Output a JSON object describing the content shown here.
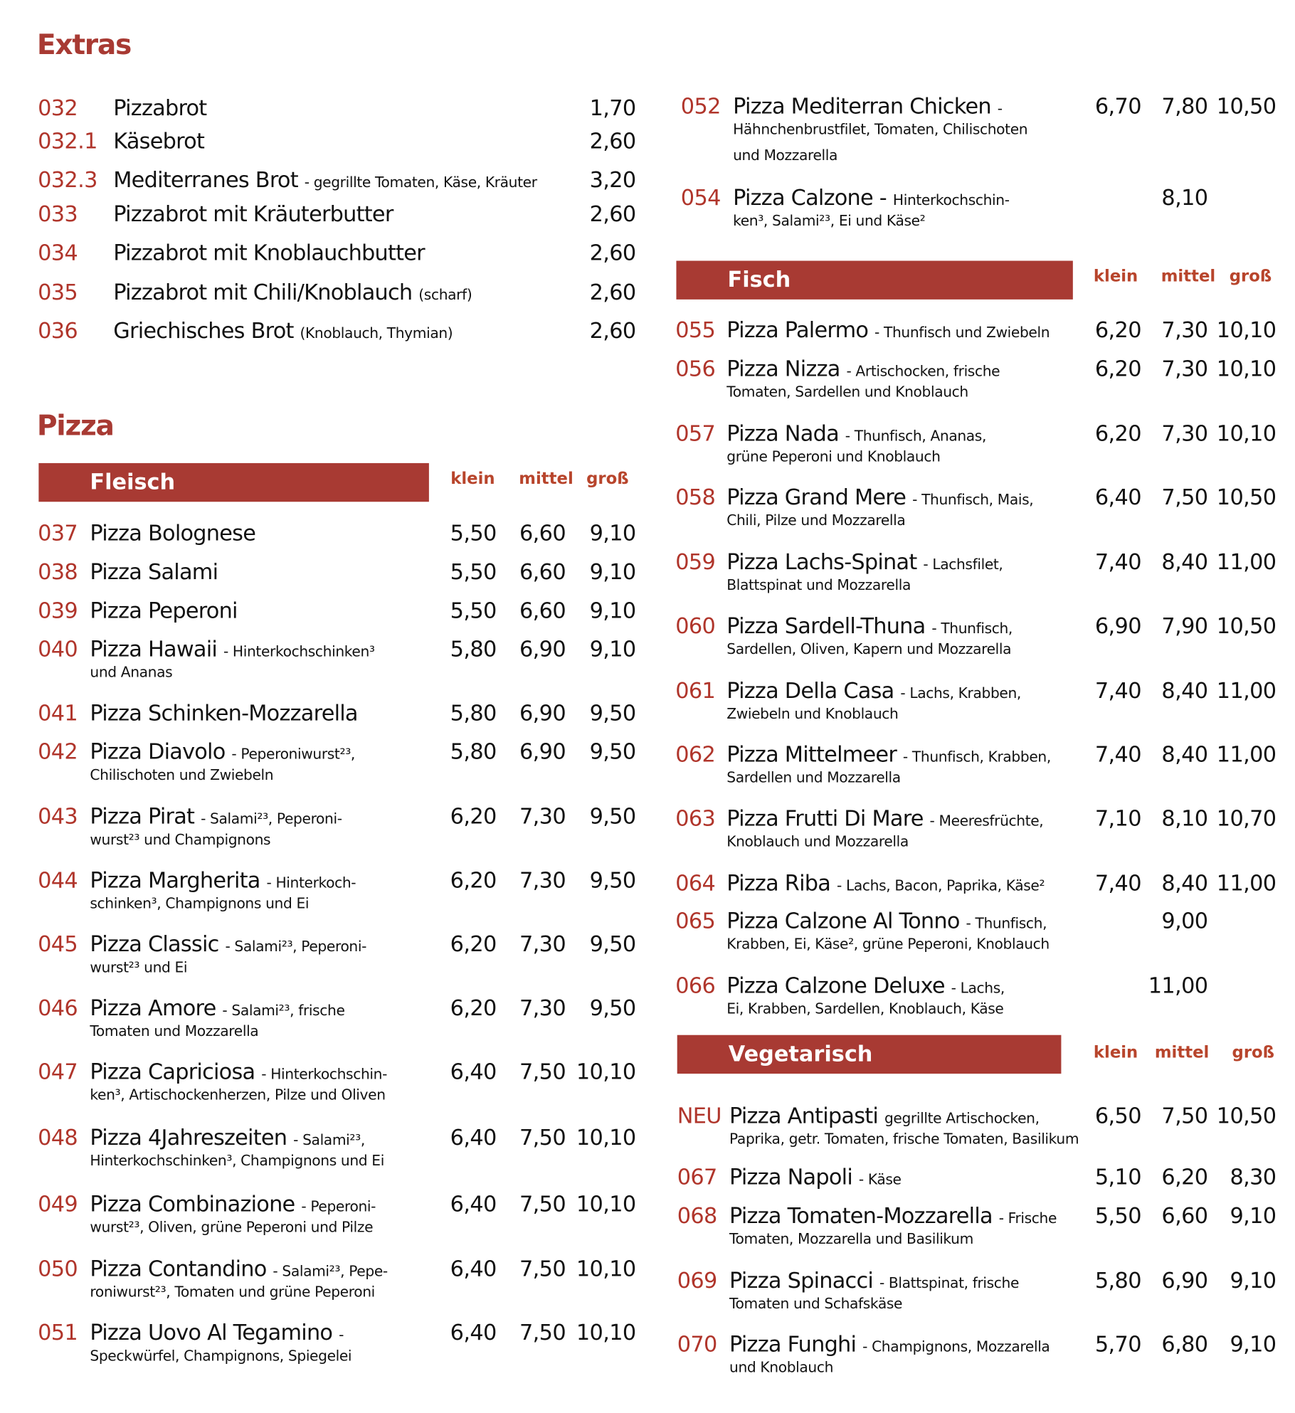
{
  "colors": {
    "accent": "#a83a33",
    "code": "#b0352b",
    "header": "#b8452c"
  },
  "extras": {
    "title": "Extras",
    "items": [
      {
        "code": "032",
        "name": "Pizzabrot",
        "desc": "",
        "price": "1,70"
      },
      {
        "code": "032.1",
        "name": "Käsebrot",
        "desc": "",
        "price": "2,60"
      },
      {
        "code": "032.3",
        "name": "Mediterranes  Brot",
        "desc": "- gegrillte Tomaten, Käse, Kräuter",
        "price": "3,20"
      },
      {
        "code": "033",
        "name": "Pizzabrot mit Kräuterbutter",
        "desc": "",
        "price": "2,60"
      },
      {
        "code": "034",
        "name": "Pizzabrot mit Knoblauchbutter",
        "desc": "",
        "price": "2,60"
      },
      {
        "code": "035",
        "name": "Pizzabrot mit Chili/Knoblauch",
        "desc": "(scharf)",
        "price": "2,60"
      },
      {
        "code": "036",
        "name": "Griechisches Brot",
        "desc": "(Knoblauch, Thymian)",
        "price": "2,60"
      }
    ]
  },
  "pizza": {
    "title": "Pizza",
    "columns": [
      "klein",
      "mittel",
      "groß"
    ],
    "fleisch": {
      "title": "Fleisch",
      "items": [
        {
          "code": "037",
          "name": "Pizza Bolognese",
          "desc": "",
          "desc2": "",
          "prices": [
            "5,50",
            "6,60",
            "9,10"
          ]
        },
        {
          "code": "038",
          "name": "Pizza Salami",
          "desc": "",
          "desc2": "",
          "prices": [
            "5,50",
            "6,60",
            "9,10"
          ]
        },
        {
          "code": "039",
          "name": "Pizza Peperoni",
          "desc": "",
          "desc2": "",
          "prices": [
            "5,50",
            "6,60",
            "9,10"
          ]
        },
        {
          "code": "040",
          "name": "Pizza Hawaii",
          "desc": "- Hinterkochschinken³",
          "desc2": "und Ananas",
          "prices": [
            "5,80",
            "6,90",
            "9,10"
          ]
        },
        {
          "code": "041",
          "name": "Pizza Schinken-Mozzarella",
          "desc": "",
          "desc2": "",
          "prices": [
            "5,80",
            "6,90",
            "9,50"
          ]
        },
        {
          "code": "042",
          "name": "Pizza Diavolo",
          "desc": "- Peperoniwurst²³,",
          "desc2": "Chilischoten und Zwiebeln",
          "prices": [
            "5,80",
            "6,90",
            "9,50"
          ]
        },
        {
          "code": "043",
          "name": "Pizza Pirat",
          "desc": "- Salami²³, Peperoni-",
          "desc2": "wurst²³ und Champignons",
          "prices": [
            "6,20",
            "7,30",
            "9,50"
          ]
        },
        {
          "code": "044",
          "name": "Pizza Margherita",
          "desc": "- Hinterkoch-",
          "desc2": "schinken³, Champignons und Ei",
          "prices": [
            "6,20",
            "7,30",
            "9,50"
          ]
        },
        {
          "code": "045",
          "name": "Pizza Classic",
          "desc": "- Salami²³, Peperoni-",
          "desc2": "wurst²³ und Ei",
          "prices": [
            "6,20",
            "7,30",
            "9,50"
          ]
        },
        {
          "code": "046",
          "name": "Pizza Amore",
          "desc": "- Salami²³, frische",
          "desc2": "Tomaten und Mozzarella",
          "prices": [
            "6,20",
            "7,30",
            "9,50"
          ]
        },
        {
          "code": "047",
          "name": "Pizza Capriciosa",
          "desc": "- Hinterkochschin-",
          "desc2": "ken³, Artischockenherzen, Pilze und Oliven",
          "prices": [
            "6,40",
            "7,50",
            "10,10"
          ]
        },
        {
          "code": "048",
          "name": "Pizza 4Jahreszeiten",
          "desc": "- Salami²³,",
          "desc2": "Hinterkochschinken³, Champignons und Ei",
          "prices": [
            "6,40",
            "7,50",
            "10,10"
          ]
        },
        {
          "code": "049",
          "name": "Pizza Combinazione",
          "desc": "- Peperoni-",
          "desc2": "wurst²³, Oliven, grüne Peperoni und Pilze",
          "prices": [
            "6,40",
            "7,50",
            "10,10"
          ]
        },
        {
          "code": "050",
          "name": "Pizza Contandino",
          "desc": "- Salami²³, Pepe-",
          "desc2": "roniwurst²³, Tomaten und grüne Peperoni",
          "prices": [
            "6,40",
            "7,50",
            "10,10"
          ]
        },
        {
          "code": "051",
          "name": "Pizza Uovo Al Tegamino",
          "desc": "-",
          "desc2": "Speckwürfel, Champignons, Spiegelei",
          "prices": [
            "6,40",
            "7,50",
            "10,10"
          ]
        }
      ]
    },
    "fleisch_cont": {
      "items": [
        {
          "code": "052",
          "name": "Pizza Mediterran Chicken",
          "desc": "-",
          "desc2": "Hähnchenbrustfilet, Tomaten, Chilischoten",
          "desc3": "und Mozzarella",
          "prices": [
            "6,70",
            "7,80",
            "10,50"
          ]
        },
        {
          "code": "054",
          "name": "Pizza Calzone -",
          "desc": "Hinterkochschin-",
          "desc2": "ken³, Salami²³, Ei und Käse²",
          "desc3": "",
          "prices": [
            "",
            "8,10",
            ""
          ]
        }
      ]
    },
    "fisch": {
      "title": "Fisch",
      "items": [
        {
          "code": "055",
          "name": "Pizza Palermo",
          "desc": "- Thunfisch und Zwiebeln",
          "desc2": "",
          "prices": [
            "6,20",
            "7,30",
            "10,10"
          ]
        },
        {
          "code": "056",
          "name": "Pizza Nizza",
          "desc": "- Artischocken, frische",
          "desc2": "Tomaten, Sardellen und Knoblauch",
          "prices": [
            "6,20",
            "7,30",
            "10,10"
          ]
        },
        {
          "code": "057",
          "name": "Pizza Nada",
          "desc": "- Thunfisch, Ananas,",
          "desc2": "grüne Peperoni und Knoblauch",
          "prices": [
            "6,20",
            "7,30",
            "10,10"
          ]
        },
        {
          "code": "058",
          "name": "Pizza Grand Mere",
          "desc": "- Thunfisch, Mais,",
          "desc2": "Chili, Pilze und Mozzarella",
          "prices": [
            "6,40",
            "7,50",
            "10,50"
          ]
        },
        {
          "code": "059",
          "name": "Pizza Lachs-Spinat",
          "desc": "- Lachsfilet,",
          "desc2": "Blattspinat und Mozzarella",
          "prices": [
            "7,40",
            "8,40",
            "11,00"
          ]
        },
        {
          "code": "060",
          "name": "Pizza Sardell-Thuna",
          "desc": "- Thunfisch,",
          "desc2": "Sardellen, Oliven, Kapern und Mozzarella",
          "prices": [
            "6,90",
            "7,90",
            "10,50"
          ]
        },
        {
          "code": "061",
          "name": "Pizza Della Casa",
          "desc": "- Lachs, Krabben,",
          "desc2": "Zwiebeln und Knoblauch",
          "prices": [
            "7,40",
            "8,40",
            "11,00"
          ]
        },
        {
          "code": "062",
          "name": "Pizza Mittelmeer",
          "desc": "- Thunfisch, Krabben,",
          "desc2": "Sardellen und Mozzarella",
          "prices": [
            "7,40",
            "8,40",
            "11,00"
          ]
        },
        {
          "code": "063",
          "name": "Pizza Frutti Di Mare",
          "desc": "- Meeresfrüchte,",
          "desc2": "Knoblauch und Mozzarella",
          "prices": [
            "7,10",
            "8,10",
            "10,70"
          ]
        },
        {
          "code": "064",
          "name": "Pizza Riba",
          "desc": "- Lachs, Bacon, Paprika, Käse²",
          "desc2": "",
          "prices": [
            "7,40",
            "8,40",
            "11,00"
          ]
        },
        {
          "code": "065",
          "name": "Pizza Calzone Al Tonno",
          "desc": "- Thunfisch,",
          "desc2": "Krabben, Ei, Käse², grüne Peperoni, Knoblauch",
          "prices": [
            "",
            "9,00",
            ""
          ]
        },
        {
          "code": "066",
          "name": "Pizza Calzone Deluxe",
          "desc": "- Lachs,",
          "desc2": "Ei, Krabben, Sardellen, Knoblauch, Käse",
          "prices": [
            "",
            "11,00",
            ""
          ]
        }
      ]
    },
    "vegetarisch": {
      "title": "Vegetarisch",
      "items": [
        {
          "code": "NEU",
          "name": "Pizza Antipasti",
          "desc": "gegrillte Artischocken,",
          "desc2": "Paprika, getr. Tomaten, frische Tomaten, Basilikum",
          "prices": [
            "6,50",
            "7,50",
            "10,50"
          ]
        },
        {
          "code": "067",
          "name": "Pizza Napoli",
          "desc": "- Käse",
          "desc2": "",
          "prices": [
            "5,10",
            "6,20",
            "8,30"
          ]
        },
        {
          "code": "068",
          "name": "Pizza Tomaten-Mozzarella",
          "desc": "- Frische",
          "desc2": "Tomaten, Mozzarella und Basilikum",
          "prices": [
            "5,50",
            "6,60",
            "9,10"
          ]
        },
        {
          "code": "069",
          "name": "Pizza Spinacci",
          "desc": "- Blattspinat, frische",
          "desc2": "Tomaten und Schafskäse",
          "prices": [
            "5,80",
            "6,90",
            "9,10"
          ]
        },
        {
          "code": "070",
          "name": "Pizza Funghi",
          "desc": "- Champignons, Mozzarella",
          "desc2": "und Knoblauch",
          "prices": [
            "5,70",
            "6,80",
            "9,10"
          ]
        }
      ]
    }
  }
}
